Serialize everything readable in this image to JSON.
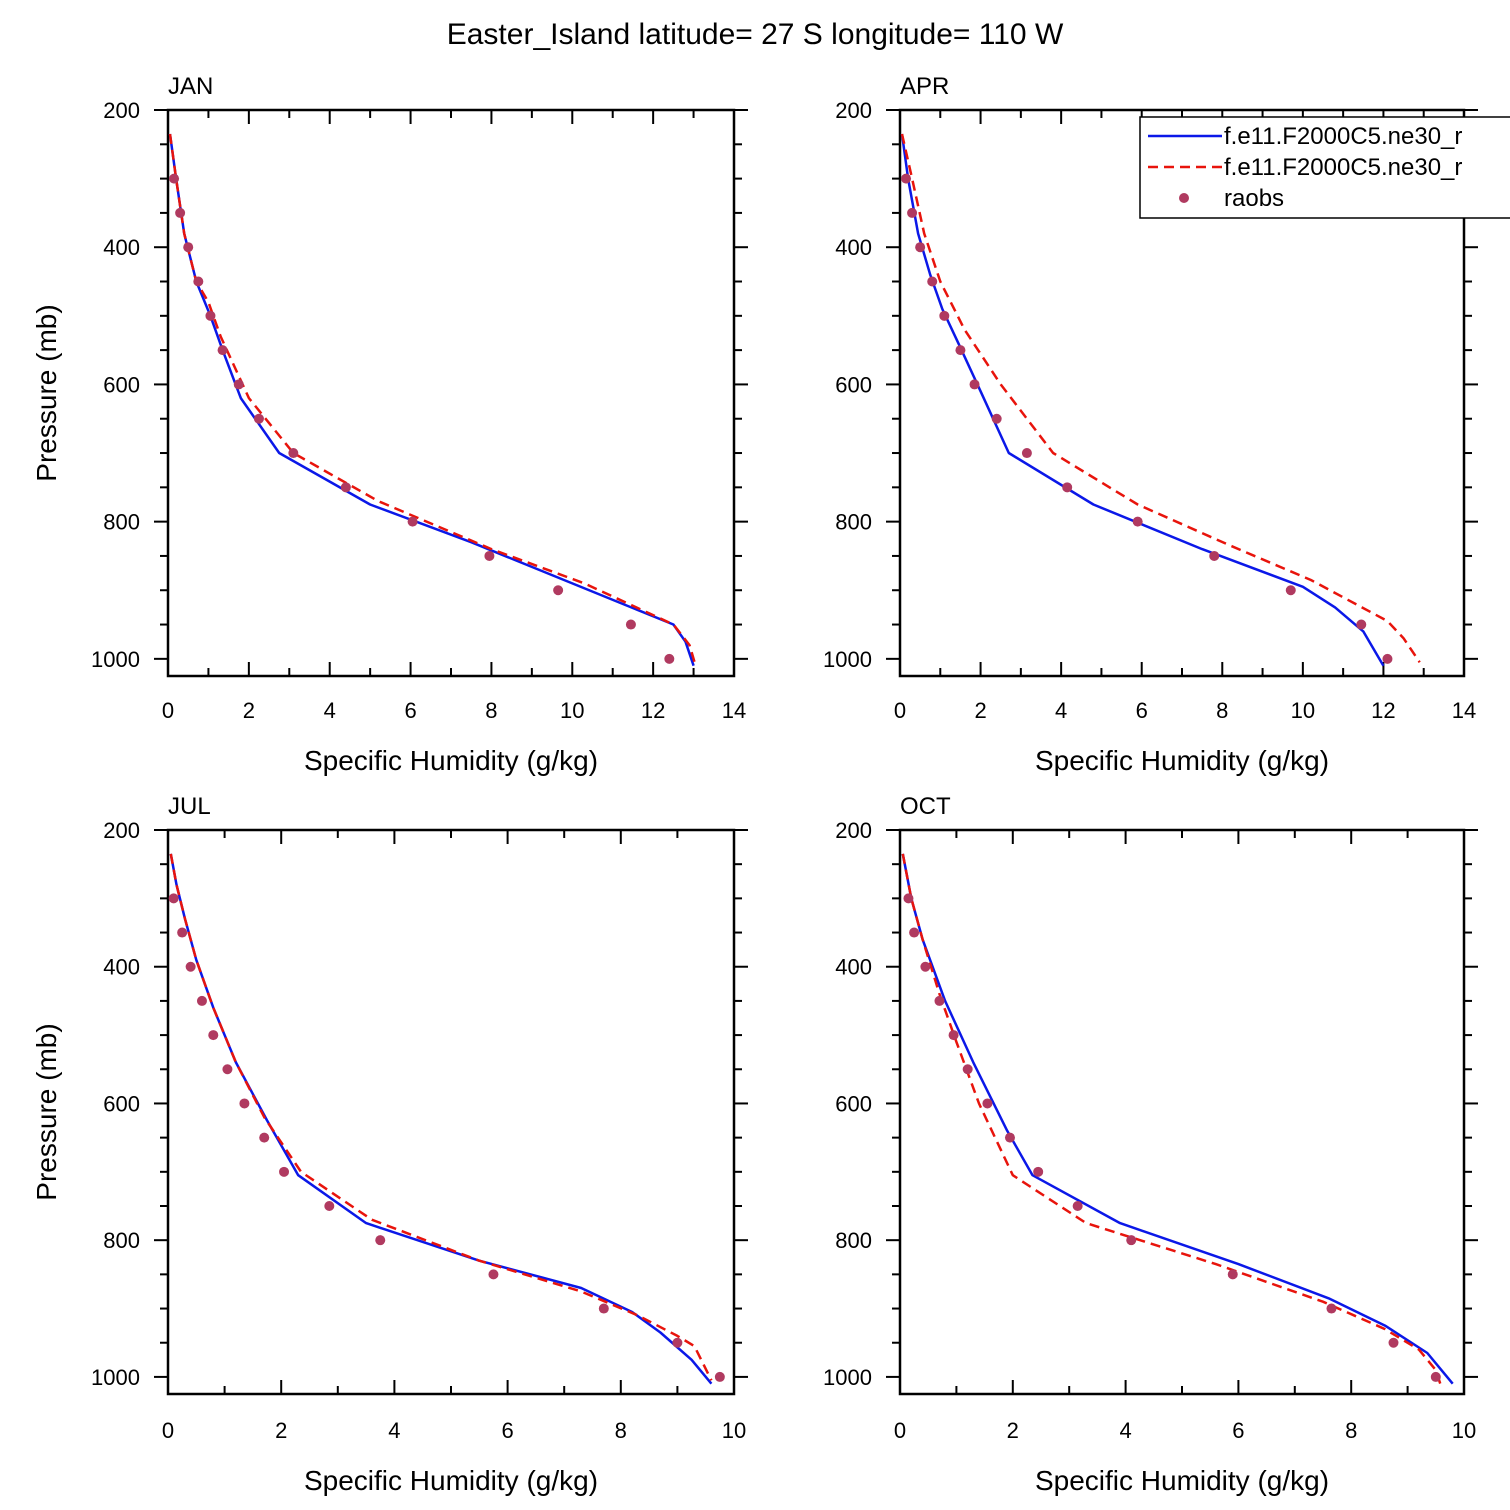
{
  "figure": {
    "title": "Easter_Island  latitude= 27 S longitude= 110 W"
  },
  "legend": {
    "placement": "top-right of APR panel",
    "entries": [
      {
        "label": "f.e11.F2000C5.ne30_r",
        "style": "solid",
        "color": "#0b18e8"
      },
      {
        "label": "f.e11.F2000C5.ne30_r",
        "style": "dashed",
        "color": "#e8140c"
      },
      {
        "label": "raobs",
        "style": "dot",
        "color": "#b03a60"
      }
    ]
  },
  "colors": {
    "model_solid": "#0b18e8",
    "model_dashed": "#e8140c",
    "raobs": "#b03a60",
    "axis": "#000000"
  },
  "chart_data": [
    {
      "type": "line",
      "panel_label": "JAN",
      "xlabel": "Specific Humidity (g/kg)",
      "ylabel": "Pressure (mb)",
      "xlim": [
        0,
        14
      ],
      "ylim": [
        200,
        1025
      ],
      "y_inverted": true,
      "xticks": [
        0,
        2,
        4,
        6,
        8,
        10,
        12,
        14
      ],
      "yticks": [
        200,
        400,
        600,
        800,
        1000
      ],
      "grid": false,
      "series": [
        {
          "name": "f.e11.F2000C5.ne30_r",
          "style": "solid",
          "x": [
            0.05,
            0.2,
            0.4,
            0.7,
            1.05,
            1.35,
            1.8,
            2.75,
            5.0,
            7.5,
            10.0,
            12.5,
            12.8,
            13.0
          ],
          "y": [
            235,
            300,
            380,
            450,
            500,
            550,
            620,
            700,
            775,
            830,
            890,
            950,
            975,
            1010
          ]
        },
        {
          "name": "f.e11.F2000C5.ne30_r",
          "style": "dashed",
          "x": [
            0.05,
            0.2,
            0.4,
            0.7,
            1.0,
            1.3,
            2.0,
            3.1,
            5.2,
            8.0,
            10.3,
            12.5,
            12.9,
            13.05
          ],
          "y": [
            235,
            300,
            380,
            450,
            480,
            530,
            620,
            700,
            770,
            840,
            890,
            950,
            980,
            1010
          ]
        },
        {
          "name": "raobs",
          "style": "points",
          "x": [
            0.15,
            0.3,
            0.5,
            0.75,
            1.05,
            1.35,
            1.75,
            2.25,
            3.1,
            4.4,
            6.05,
            7.95,
            9.65,
            11.45,
            12.4
          ],
          "y": [
            300,
            350,
            400,
            450,
            500,
            550,
            600,
            650,
            700,
            750,
            800,
            850,
            900,
            950,
            1000
          ]
        }
      ]
    },
    {
      "type": "line",
      "panel_label": "APR",
      "xlabel": "Specific Humidity (g/kg)",
      "ylabel": "",
      "xlim": [
        0,
        14
      ],
      "ylim": [
        200,
        1025
      ],
      "y_inverted": true,
      "xticks": [
        0,
        2,
        4,
        6,
        8,
        10,
        12,
        14
      ],
      "yticks": [
        200,
        400,
        600,
        800,
        1000
      ],
      "grid": false,
      "series": [
        {
          "name": "f.e11.F2000C5.ne30_r",
          "style": "solid",
          "x": [
            0.05,
            0.2,
            0.45,
            0.75,
            1.05,
            1.45,
            2.0,
            2.7,
            4.8,
            7.5,
            10.0,
            10.8,
            11.5,
            12.0
          ],
          "y": [
            235,
            300,
            380,
            440,
            490,
            540,
            610,
            700,
            775,
            840,
            895,
            925,
            960,
            1010
          ]
        },
        {
          "name": "f.e11.F2000C5.ne30_r",
          "style": "dashed",
          "x": [
            0.05,
            0.3,
            0.6,
            1.0,
            1.6,
            2.5,
            3.8,
            5.9,
            8.2,
            10.2,
            12.1,
            12.5,
            12.9
          ],
          "y": [
            235,
            300,
            380,
            450,
            520,
            600,
            700,
            775,
            835,
            885,
            945,
            970,
            1005
          ]
        },
        {
          "name": "raobs",
          "style": "points",
          "x": [
            0.15,
            0.3,
            0.5,
            0.8,
            1.1,
            1.5,
            1.85,
            2.4,
            3.15,
            4.15,
            5.9,
            7.8,
            9.7,
            11.45,
            12.1
          ],
          "y": [
            300,
            350,
            400,
            450,
            500,
            550,
            600,
            650,
            700,
            750,
            800,
            850,
            900,
            950,
            1000
          ]
        }
      ]
    },
    {
      "type": "line",
      "panel_label": "JUL",
      "xlabel": "Specific Humidity (g/kg)",
      "ylabel": "Pressure (mb)",
      "xlim": [
        0,
        10
      ],
      "ylim": [
        200,
        1025
      ],
      "y_inverted": true,
      "xticks": [
        0,
        2,
        4,
        6,
        8,
        10
      ],
      "yticks": [
        200,
        400,
        600,
        800,
        1000
      ],
      "grid": false,
      "series": [
        {
          "name": "f.e11.F2000C5.ne30_r",
          "style": "solid",
          "x": [
            0.05,
            0.15,
            0.3,
            0.5,
            0.8,
            1.2,
            1.75,
            2.3,
            3.5,
            5.5,
            7.3,
            8.2,
            8.7,
            9.25,
            9.6
          ],
          "y": [
            235,
            280,
            330,
            390,
            460,
            540,
            625,
            705,
            775,
            830,
            870,
            905,
            935,
            975,
            1010
          ]
        },
        {
          "name": "f.e11.F2000C5.ne30_r",
          "style": "dashed",
          "x": [
            0.05,
            0.15,
            0.3,
            0.5,
            0.8,
            1.2,
            1.7,
            2.35,
            3.6,
            5.5,
            7.3,
            8.3,
            9.0,
            9.3,
            9.6
          ],
          "y": [
            235,
            280,
            330,
            390,
            460,
            540,
            620,
            700,
            770,
            830,
            875,
            910,
            940,
            955,
            1005
          ]
        },
        {
          "name": "raobs",
          "style": "points",
          "x": [
            0.1,
            0.25,
            0.4,
            0.6,
            0.8,
            1.05,
            1.35,
            1.7,
            2.05,
            2.85,
            3.75,
            5.75,
            7.7,
            9.0,
            9.75
          ],
          "y": [
            300,
            350,
            400,
            450,
            500,
            550,
            600,
            650,
            700,
            750,
            800,
            850,
            900,
            950,
            1000
          ]
        }
      ]
    },
    {
      "type": "line",
      "panel_label": "OCT",
      "xlabel": "Specific Humidity (g/kg)",
      "ylabel": "",
      "xlim": [
        0,
        10
      ],
      "ylim": [
        200,
        1025
      ],
      "y_inverted": true,
      "xticks": [
        0,
        2,
        4,
        6,
        8,
        10
      ],
      "yticks": [
        200,
        400,
        600,
        800,
        1000
      ],
      "grid": false,
      "series": [
        {
          "name": "f.e11.F2000C5.ne30_r",
          "style": "solid",
          "x": [
            0.05,
            0.2,
            0.4,
            0.8,
            1.3,
            1.9,
            2.35,
            3.9,
            6.0,
            7.6,
            8.6,
            9.35,
            9.6,
            9.8
          ],
          "y": [
            235,
            300,
            360,
            450,
            540,
            640,
            705,
            775,
            835,
            885,
            925,
            965,
            990,
            1010
          ]
        },
        {
          "name": "f.e11.F2000C5.ne30_r",
          "style": "dashed",
          "x": [
            0.05,
            0.2,
            0.4,
            0.7,
            1.0,
            1.4,
            2.0,
            3.3,
            5.6,
            7.5,
            8.6,
            9.2,
            9.5,
            9.6
          ],
          "y": [
            235,
            300,
            360,
            440,
            510,
            600,
            705,
            775,
            835,
            890,
            930,
            960,
            990,
            1015
          ]
        },
        {
          "name": "raobs",
          "style": "points",
          "x": [
            0.15,
            0.25,
            0.45,
            0.7,
            0.95,
            1.2,
            1.55,
            1.95,
            2.45,
            3.15,
            4.1,
            5.9,
            7.65,
            8.75,
            9.5
          ],
          "y": [
            300,
            350,
            400,
            450,
            500,
            550,
            600,
            650,
            700,
            750,
            800,
            850,
            900,
            950,
            1000
          ]
        }
      ]
    }
  ]
}
